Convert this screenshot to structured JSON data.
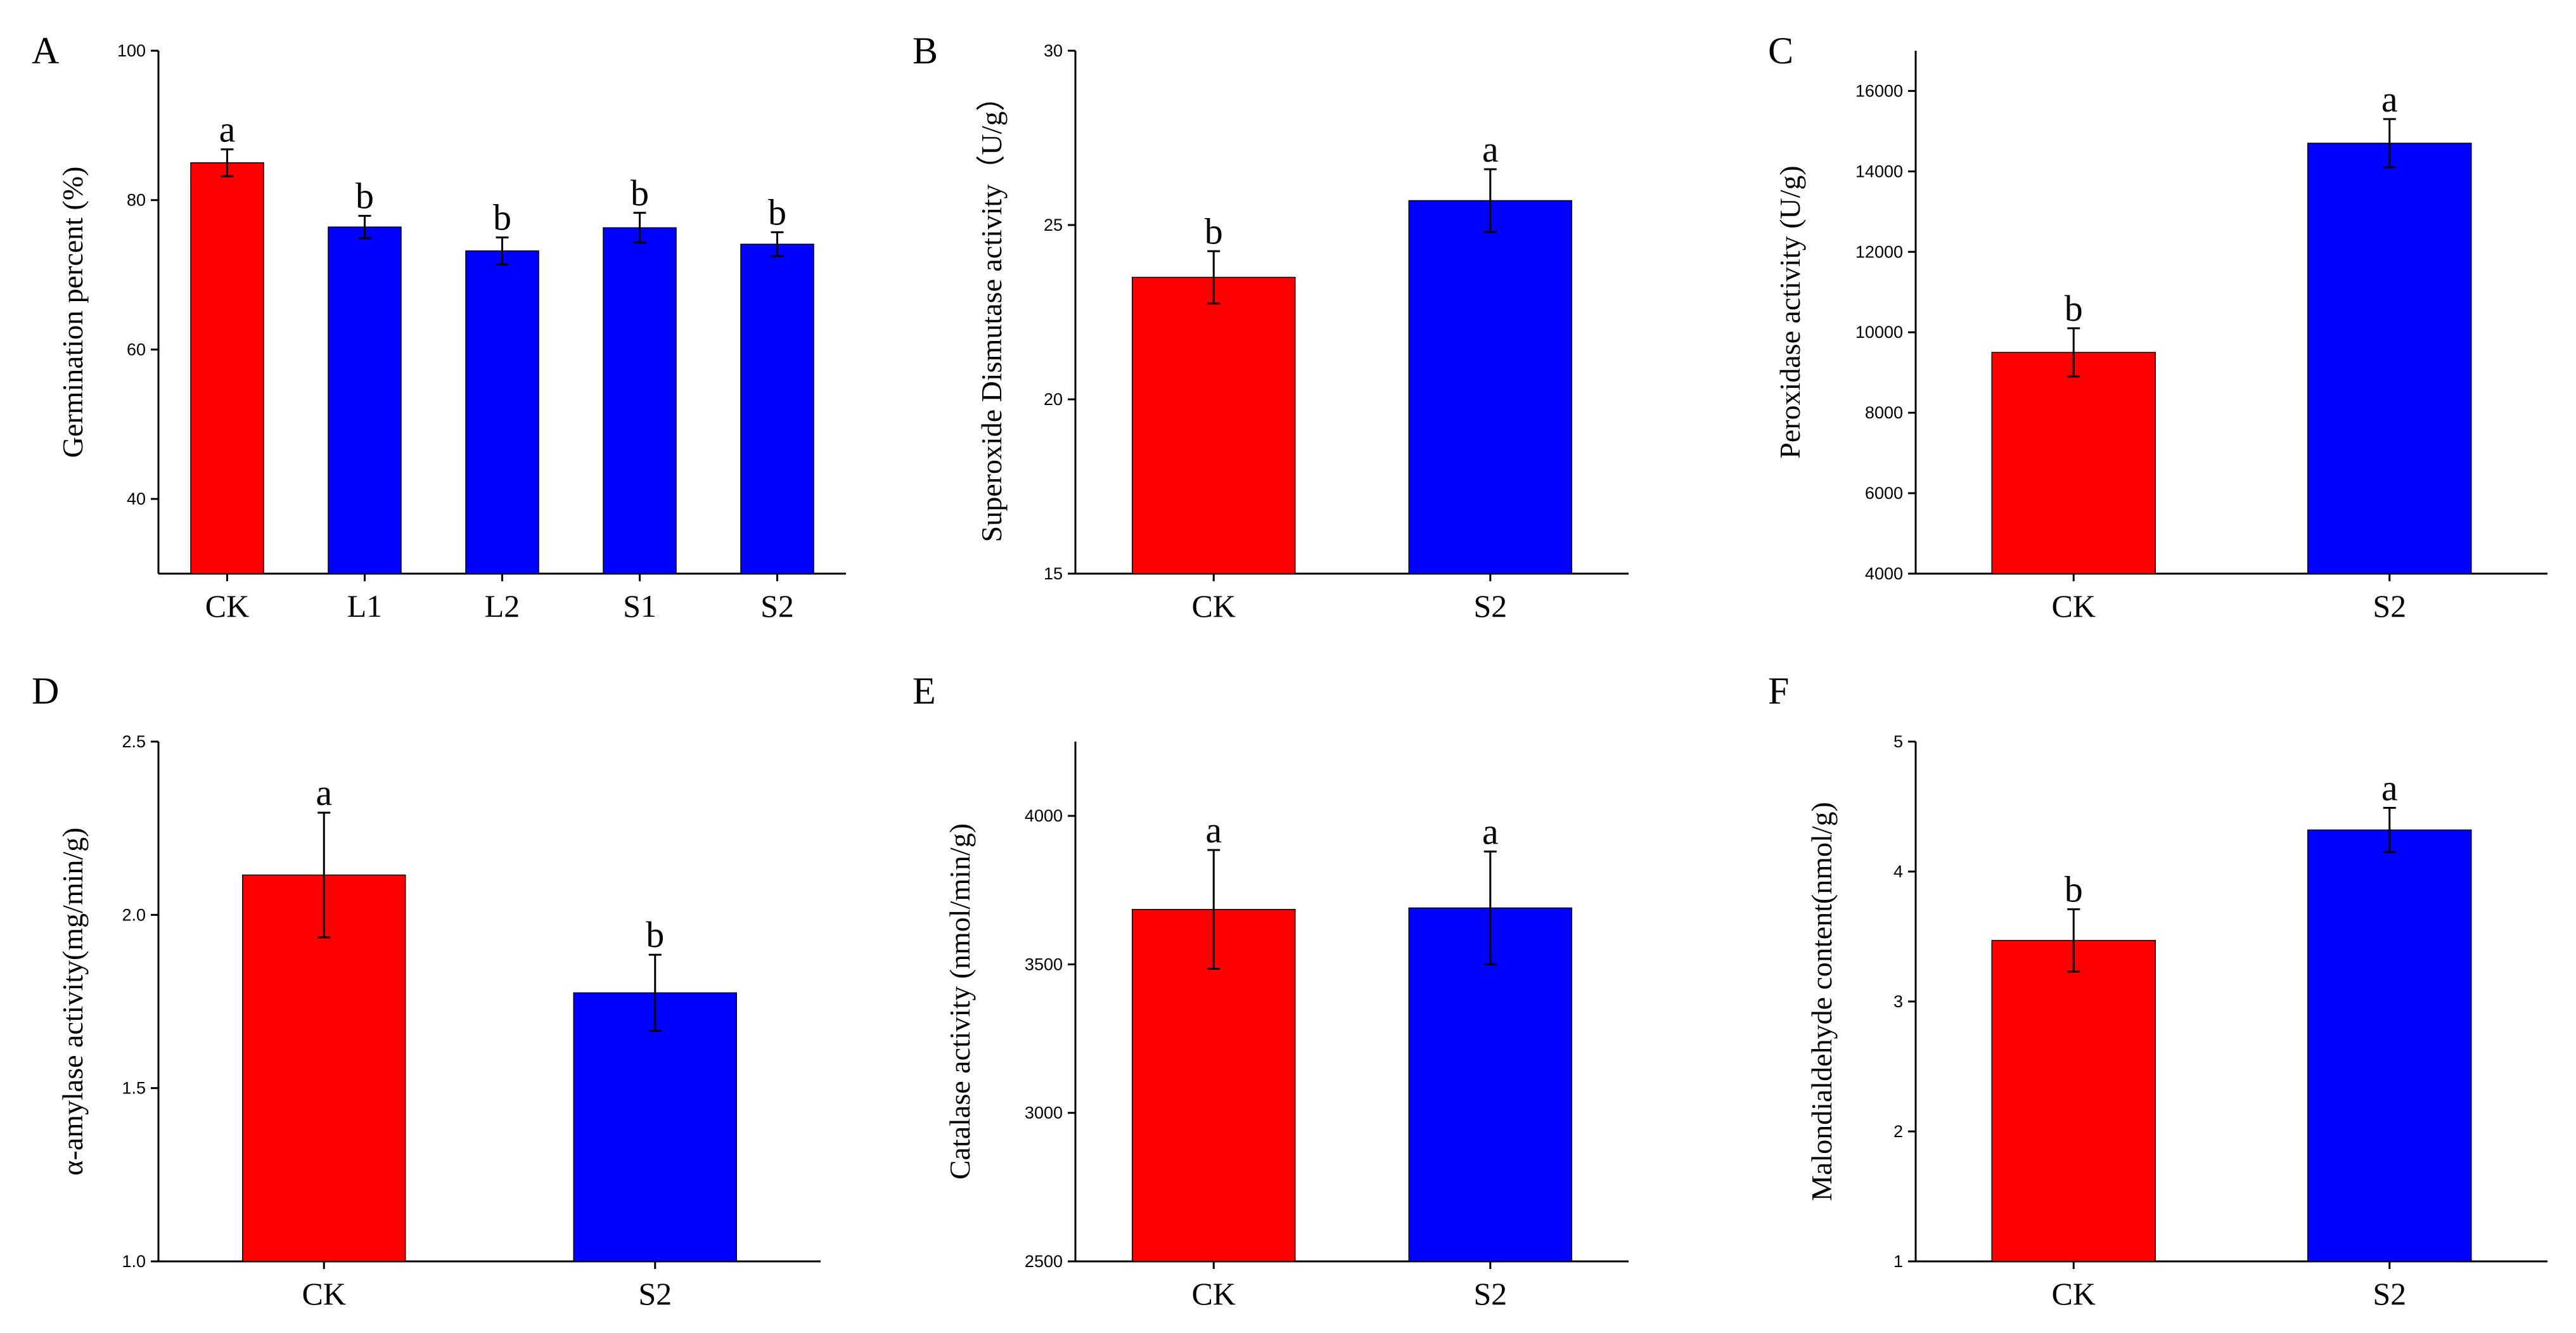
{
  "figure": {
    "colors": {
      "control": "#ff0000",
      "treatment": "#0000ff",
      "axis": "#000000"
    }
  },
  "chart_data": [
    {
      "id": "A",
      "panel_label": "A",
      "type": "bar",
      "title": "",
      "xlabel": "",
      "ylabel": "Germination percent (%)",
      "ylim": [
        30,
        100
      ],
      "yticks": [
        40,
        60,
        80,
        100
      ],
      "ytick_labels": [
        "40",
        "60",
        "80",
        "100"
      ],
      "categories": [
        "CK",
        "L1",
        "L2",
        "S1",
        "S2"
      ],
      "values": [
        85,
        76.4,
        73.2,
        76.3,
        74.1
      ],
      "errors": [
        1.8,
        1.5,
        1.8,
        2.0,
        1.6
      ],
      "letters": [
        "a",
        "b",
        "b",
        "b",
        "b"
      ],
      "colors": [
        "#ff0000",
        "#0000ff",
        "#0000ff",
        "#0000ff",
        "#0000ff"
      ],
      "grid": false
    },
    {
      "id": "B",
      "panel_label": "B",
      "type": "bar",
      "title": "",
      "xlabel": "",
      "ylabel": "Superoxide Dismutase activity（U/g）",
      "ylim": [
        15,
        30
      ],
      "yticks": [
        15,
        20,
        25,
        30
      ],
      "ytick_labels": [
        "15",
        "20",
        "25",
        "30"
      ],
      "categories": [
        "CK",
        "S2"
      ],
      "values": [
        23.5,
        25.7
      ],
      "errors": [
        0.75,
        0.9
      ],
      "letters": [
        "b",
        "a"
      ],
      "colors": [
        "#ff0000",
        "#0000ff"
      ],
      "grid": false
    },
    {
      "id": "C",
      "panel_label": "C",
      "type": "bar",
      "title": "",
      "xlabel": "",
      "ylabel": "Peroxidase activity (U/g)",
      "ylim": [
        4000,
        17000
      ],
      "yticks": [
        4000,
        6000,
        8000,
        10000,
        12000,
        14000,
        16000
      ],
      "ytick_labels": [
        "4000",
        "6000",
        "8000",
        "10000",
        "12000",
        "14000",
        "16000"
      ],
      "categories": [
        "CK",
        "S2"
      ],
      "values": [
        9500,
        14700
      ],
      "errors": [
        600,
        600
      ],
      "letters": [
        "b",
        "a"
      ],
      "colors": [
        "#ff0000",
        "#0000ff"
      ],
      "grid": false
    },
    {
      "id": "D",
      "panel_label": "D",
      "type": "bar",
      "title": "",
      "xlabel": "",
      "ylabel": "α-amylase activity(mg/min/g)",
      "ylim": [
        1.0,
        2.5
      ],
      "yticks": [
        1.0,
        1.5,
        2.0,
        2.5
      ],
      "ytick_labels": [
        "1.0",
        "1.5",
        "2.0",
        "2.5"
      ],
      "categories": [
        "CK",
        "S2"
      ],
      "values": [
        2.115,
        1.775
      ],
      "errors": [
        0.18,
        0.11
      ],
      "letters": [
        "a",
        "b"
      ],
      "colors": [
        "#ff0000",
        "#0000ff"
      ],
      "grid": false
    },
    {
      "id": "E",
      "panel_label": "E",
      "type": "bar",
      "title": "",
      "xlabel": "",
      "ylabel": "Catalase activity (nmol/min/g)",
      "ylim": [
        2500,
        4250
      ],
      "yticks": [
        2500,
        3000,
        3500,
        4000
      ],
      "ytick_labels": [
        "2500",
        "3000",
        "3500",
        "4000"
      ],
      "categories": [
        "CK",
        "S2"
      ],
      "values": [
        3685,
        3690
      ],
      "errors": [
        200,
        190
      ],
      "letters": [
        "a",
        "a"
      ],
      "colors": [
        "#ff0000",
        "#0000ff"
      ],
      "grid": false
    },
    {
      "id": "F",
      "panel_label": "F",
      "type": "bar",
      "title": "",
      "xlabel": "",
      "ylabel": "Malondialdehyde content(nmol/g)",
      "ylim": [
        1,
        5
      ],
      "yticks": [
        1,
        2,
        3,
        4,
        5
      ],
      "ytick_labels": [
        "1",
        "2",
        "3",
        "4",
        "5"
      ],
      "categories": [
        "CK",
        "S2"
      ],
      "values": [
        3.47,
        4.32
      ],
      "errors": [
        0.24,
        0.17
      ],
      "letters": [
        "b",
        "a"
      ],
      "colors": [
        "#ff0000",
        "#0000ff"
      ],
      "grid": false
    }
  ]
}
